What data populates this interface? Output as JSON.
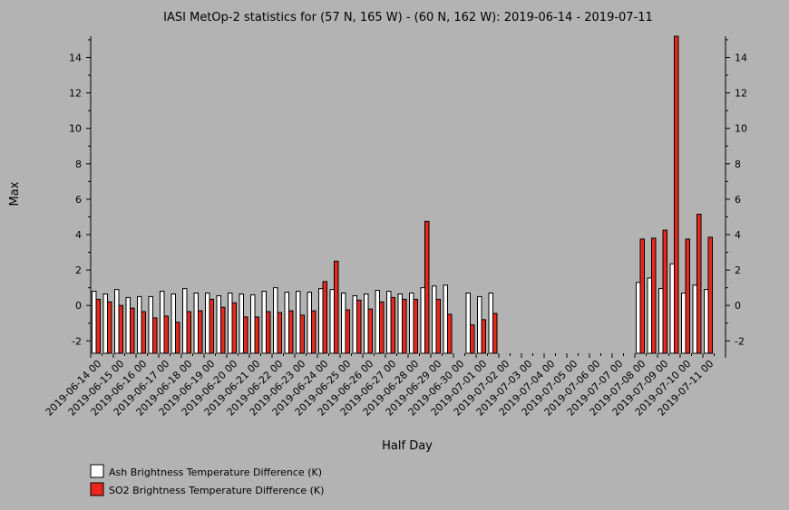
{
  "chart_data": {
    "type": "bar",
    "title": "IASI MetOp-2 statistics for (57 N, 165 W) - (60 N, 162 W): 2019-06-14 - 2019-07-11",
    "xlabel": "Half Day",
    "ylabel": "Max",
    "ylim": [
      -2.7,
      15.2
    ],
    "yticks": [
      -2,
      0,
      2,
      4,
      6,
      8,
      10,
      12,
      14
    ],
    "categories": [
      "2019-06-14 00",
      "2019-06-14 12",
      "2019-06-15 00",
      "2019-06-15 12",
      "2019-06-16 00",
      "2019-06-16 12",
      "2019-06-17 00",
      "2019-06-17 12",
      "2019-06-18 00",
      "2019-06-18 12",
      "2019-06-19 00",
      "2019-06-19 12",
      "2019-06-20 00",
      "2019-06-20 12",
      "2019-06-21 00",
      "2019-06-21 12",
      "2019-06-22 00",
      "2019-06-22 12",
      "2019-06-23 00",
      "2019-06-23 12",
      "2019-06-24 00",
      "2019-06-24 12",
      "2019-06-25 00",
      "2019-06-25 12",
      "2019-06-26 00",
      "2019-06-26 12",
      "2019-06-27 00",
      "2019-06-27 12",
      "2019-06-28 00",
      "2019-06-28 12",
      "2019-06-29 00",
      "2019-06-29 12",
      "2019-06-30 00",
      "2019-06-30 12",
      "2019-07-01 00",
      "2019-07-01 12",
      "2019-07-02 00",
      "2019-07-02 12",
      "2019-07-03 00",
      "2019-07-03 12",
      "2019-07-04 00",
      "2019-07-04 12",
      "2019-07-05 00",
      "2019-07-05 12",
      "2019-07-06 00",
      "2019-07-06 12",
      "2019-07-07 00",
      "2019-07-07 12",
      "2019-07-08 00",
      "2019-07-08 12",
      "2019-07-09 00",
      "2019-07-09 12",
      "2019-07-10 00",
      "2019-07-10 12",
      "2019-07-11 00",
      "2019-07-11 12"
    ],
    "xtick_labels": [
      "2019-06-14 00",
      "2019-06-15 00",
      "2019-06-16 00",
      "2019-06-17 00",
      "2019-06-18 00",
      "2019-06-19 00",
      "2019-06-20 00",
      "2019-06-21 00",
      "2019-06-22 00",
      "2019-06-23 00",
      "2019-06-24 00",
      "2019-06-25 00",
      "2019-06-26 00",
      "2019-06-27 00",
      "2019-06-28 00",
      "2019-06-29 00",
      "2019-06-30 00",
      "2019-07-01 00",
      "2019-07-02 00",
      "2019-07-03 00",
      "2019-07-04 00",
      "2019-07-05 00",
      "2019-07-06 00",
      "2019-07-07 00",
      "2019-07-08 00",
      "2019-07-09 00",
      "2019-07-10 00",
      "2019-07-11 00"
    ],
    "series": [
      {
        "name": "Ash Brightness Temperature Difference (K)",
        "color": "#ffffff",
        "values": [
          0.8,
          0.65,
          0.9,
          0.45,
          0.5,
          0.5,
          0.8,
          0.65,
          0.95,
          0.7,
          0.7,
          0.55,
          0.7,
          0.65,
          0.6,
          0.8,
          1.0,
          0.75,
          0.8,
          0.75,
          0.95,
          0.9,
          0.7,
          0.55,
          0.65,
          0.85,
          0.8,
          0.65,
          0.7,
          1.0,
          1.1,
          1.15,
          null,
          0.7,
          0.5,
          0.7,
          null,
          null,
          null,
          null,
          null,
          null,
          null,
          null,
          null,
          null,
          null,
          null,
          1.3,
          1.55,
          0.95,
          2.35,
          0.7,
          1.15,
          0.9,
          null
        ]
      },
      {
        "name": "SO2 Brightness Temperature Difference (K)",
        "color": "#e8281e",
        "values": [
          0.35,
          0.2,
          0.0,
          -0.15,
          -0.35,
          -0.7,
          -0.6,
          -0.95,
          -0.35,
          -0.3,
          0.35,
          -0.1,
          0.15,
          -0.65,
          -0.65,
          -0.35,
          -0.4,
          -0.3,
          -0.55,
          -0.3,
          1.35,
          2.5,
          -0.25,
          0.3,
          -0.2,
          0.2,
          0.45,
          0.35,
          0.35,
          4.75,
          0.35,
          -0.5,
          null,
          -1.1,
          -0.8,
          -0.45,
          null,
          null,
          null,
          null,
          null,
          null,
          null,
          null,
          null,
          null,
          null,
          null,
          3.75,
          3.8,
          4.25,
          15.2,
          3.75,
          5.15,
          3.85,
          null
        ]
      }
    ],
    "grid": false,
    "legend_position": "bottom-left"
  }
}
